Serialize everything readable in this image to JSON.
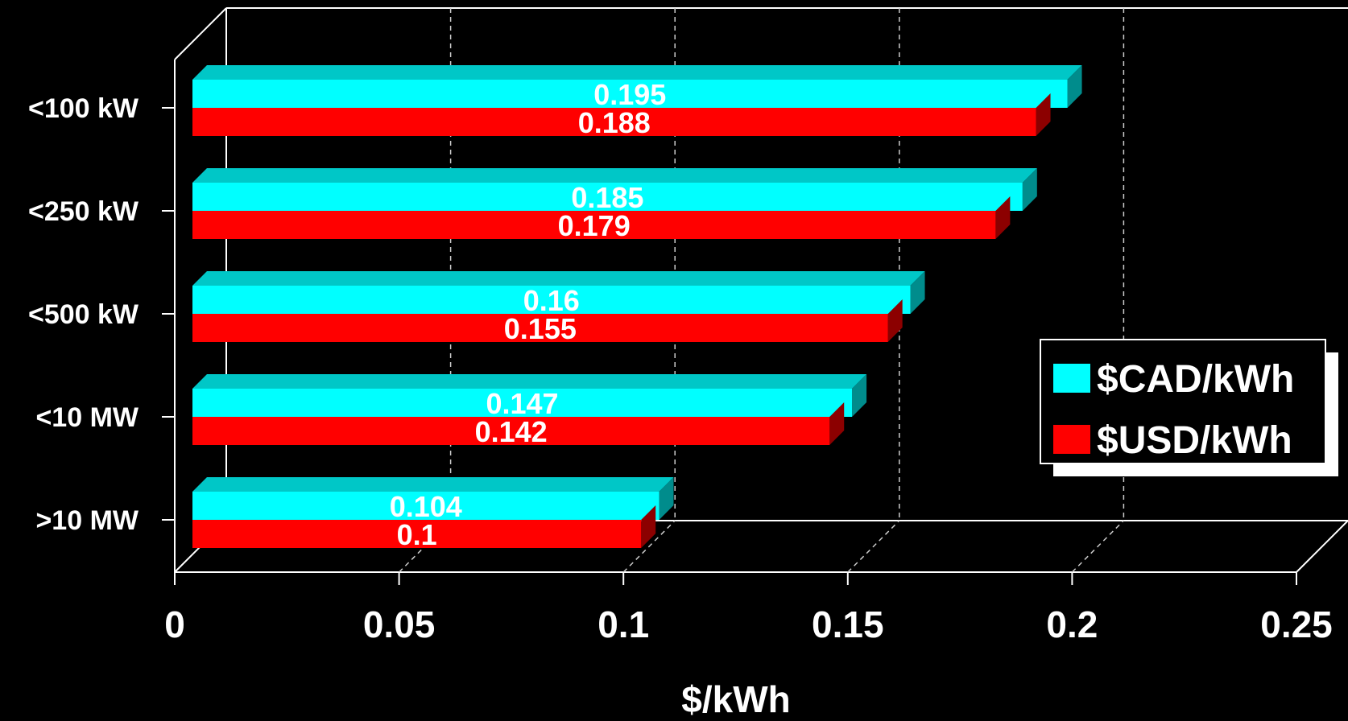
{
  "chart_data": {
    "type": "bar",
    "orientation": "horizontal",
    "style": "3d",
    "categories": [
      "<100 kW",
      "<250 kW",
      "<500 kW",
      "<10 MW",
      ">10 MW"
    ],
    "series": [
      {
        "name": "$CAD/kWh",
        "color": "#00ffff",
        "values": [
          0.195,
          0.185,
          0.16,
          0.147,
          0.104
        ]
      },
      {
        "name": "$USD/kWh",
        "color": "#ff0000",
        "values": [
          0.188,
          0.179,
          0.155,
          0.142,
          0.1
        ]
      }
    ],
    "data_labels": {
      "$CAD/kWh": [
        "0.195",
        "0.185",
        "0.16",
        "0.147",
        "0.104"
      ],
      "$USD/kWh": [
        "0.188",
        "0.179",
        "0.155",
        "0.142",
        "0.1"
      ]
    },
    "title": "",
    "xlabel": "$/kWh",
    "ylabel": "",
    "xlim": [
      0,
      0.25
    ],
    "x_ticks": [
      0,
      0.05,
      0.1,
      0.15,
      0.2,
      0.25
    ],
    "x_tick_labels": [
      "0",
      "0.05",
      "0.1",
      "0.15",
      "0.2",
      "0.25"
    ],
    "grid": "vertical dashed",
    "legend_position": "right",
    "background": "#000000"
  }
}
